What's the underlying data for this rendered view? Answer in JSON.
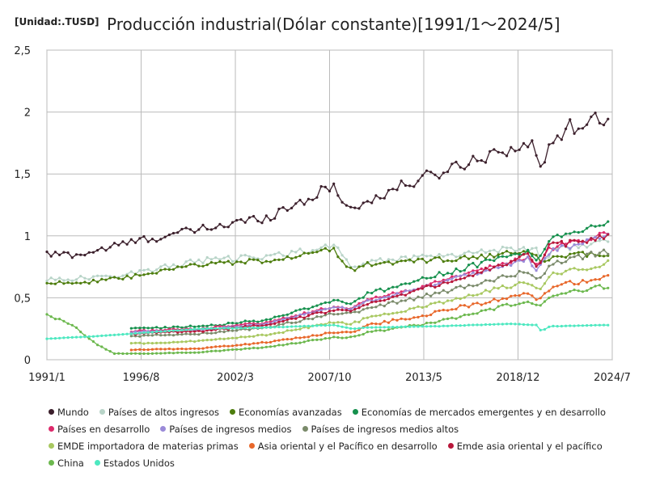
{
  "header": {
    "unit": "[Unidad:.TUSD]",
    "title": "Producción industrial(Dólar constante)[1991/1～2024/5]"
  },
  "chart_data": {
    "type": "line",
    "title": "Producción industrial(Dólar constante)[1991/1～2024/5]",
    "unit": "[Unidad:.TUSD]",
    "xlabel": "",
    "ylabel": "",
    "x_range": [
      1991.0,
      2024.5
    ],
    "ylim": [
      0,
      2.5
    ],
    "grid": true,
    "legend_position": "bottom",
    "x_ticks": [
      {
        "label": "1991/1",
        "value": 1991.0
      },
      {
        "label": "1996/8",
        "value": 1996.583
      },
      {
        "label": "2002/3",
        "value": 2002.167
      },
      {
        "label": "2007/10",
        "value": 2007.75
      },
      {
        "label": "2013/5",
        "value": 2013.333
      },
      {
        "label": "2018/12",
        "value": 2018.917
      },
      {
        "label": "2024/7",
        "value": 2024.5
      }
    ],
    "y_ticks": [
      {
        "label": "0",
        "value": 0
      },
      {
        "label": "0,5",
        "value": 0.5
      },
      {
        "label": "1",
        "value": 1
      },
      {
        "label": "1,5",
        "value": 1.5
      },
      {
        "label": "2",
        "value": 2
      },
      {
        "label": "2,5",
        "value": 2.5
      }
    ],
    "series": [
      {
        "name": "Mundo",
        "color": "#3b1f2b",
        "noise": 0.035,
        "points": [
          [
            1991.0,
            0.85
          ],
          [
            1993.0,
            0.85
          ],
          [
            1996.0,
            0.95
          ],
          [
            2000.0,
            1.05
          ],
          [
            2004.0,
            1.15
          ],
          [
            2008.0,
            1.4
          ],
          [
            2009.1,
            1.2
          ],
          [
            2010.0,
            1.28
          ],
          [
            2012.0,
            1.4
          ],
          [
            2015.0,
            1.55
          ],
          [
            2018.0,
            1.7
          ],
          [
            2019.9,
            1.72
          ],
          [
            2020.3,
            1.5
          ],
          [
            2020.8,
            1.78
          ],
          [
            2022.0,
            1.88
          ],
          [
            2024.0,
            1.95
          ],
          [
            2024.4,
            2.05
          ]
        ]
      },
      {
        "name": "Países de altos ingresos",
        "color": "#b8d4c8",
        "noise": 0.03,
        "points": [
          [
            1991.0,
            0.65
          ],
          [
            1994.0,
            0.66
          ],
          [
            1997.0,
            0.72
          ],
          [
            2000.0,
            0.8
          ],
          [
            2004.0,
            0.83
          ],
          [
            2008.0,
            0.92
          ],
          [
            2009.1,
            0.75
          ],
          [
            2010.0,
            0.79
          ],
          [
            2013.0,
            0.83
          ],
          [
            2016.0,
            0.86
          ],
          [
            2018.5,
            0.9
          ],
          [
            2020.0,
            0.89
          ],
          [
            2020.3,
            0.8
          ],
          [
            2021.0,
            0.88
          ],
          [
            2024.4,
            0.97
          ]
        ]
      },
      {
        "name": "Economías avanzadas",
        "color": "#4d7d0d",
        "noise": 0.025,
        "points": [
          [
            1991.0,
            0.62
          ],
          [
            1994.0,
            0.63
          ],
          [
            1997.0,
            0.69
          ],
          [
            2000.0,
            0.77
          ],
          [
            2004.0,
            0.8
          ],
          [
            2008.0,
            0.89
          ],
          [
            2009.1,
            0.71
          ],
          [
            2010.0,
            0.77
          ],
          [
            2013.0,
            0.8
          ],
          [
            2016.0,
            0.82
          ],
          [
            2018.5,
            0.86
          ],
          [
            2020.0,
            0.85
          ],
          [
            2020.3,
            0.76
          ],
          [
            2021.0,
            0.84
          ],
          [
            2024.4,
            0.86
          ]
        ]
      },
      {
        "name": "Economías de mercados emergentes y en desarrollo",
        "color": "#16904d",
        "noise": 0.03,
        "points": [
          [
            1996.0,
            0.25
          ],
          [
            2000.0,
            0.27
          ],
          [
            2004.0,
            0.32
          ],
          [
            2008.0,
            0.48
          ],
          [
            2009.1,
            0.46
          ],
          [
            2010.0,
            0.53
          ],
          [
            2013.0,
            0.64
          ],
          [
            2016.0,
            0.75
          ],
          [
            2019.5,
            0.88
          ],
          [
            2020.1,
            0.78
          ],
          [
            2020.8,
            0.96
          ],
          [
            2024.4,
            1.12
          ]
        ]
      },
      {
        "name": "Países en desarrollo",
        "color": "#dd2a6b",
        "noise": 0.025,
        "points": [
          [
            1996.0,
            0.23
          ],
          [
            2000.0,
            0.25
          ],
          [
            2004.0,
            0.3
          ],
          [
            2008.0,
            0.43
          ],
          [
            2009.1,
            0.42
          ],
          [
            2010.0,
            0.48
          ],
          [
            2013.0,
            0.58
          ],
          [
            2016.0,
            0.7
          ],
          [
            2019.5,
            0.83
          ],
          [
            2020.1,
            0.74
          ],
          [
            2020.8,
            0.9
          ],
          [
            2024.4,
            1.02
          ]
        ]
      },
      {
        "name": "Países de ingresos medios",
        "color": "#9a8ad8",
        "noise": 0.025,
        "points": [
          [
            1996.0,
            0.22
          ],
          [
            2000.0,
            0.24
          ],
          [
            2004.0,
            0.29
          ],
          [
            2008.0,
            0.42
          ],
          [
            2009.1,
            0.41
          ],
          [
            2010.0,
            0.47
          ],
          [
            2013.0,
            0.57
          ],
          [
            2016.0,
            0.69
          ],
          [
            2019.5,
            0.81
          ],
          [
            2020.1,
            0.72
          ],
          [
            2020.8,
            0.88
          ],
          [
            2024.4,
            1.0
          ]
        ]
      },
      {
        "name": "Países de ingresos medios altos",
        "color": "#7a8a6a",
        "noise": 0.03,
        "points": [
          [
            1996.0,
            0.19
          ],
          [
            2000.0,
            0.21
          ],
          [
            2004.0,
            0.26
          ],
          [
            2008.0,
            0.37
          ],
          [
            2009.1,
            0.37
          ],
          [
            2010.0,
            0.42
          ],
          [
            2013.0,
            0.5
          ],
          [
            2016.0,
            0.6
          ],
          [
            2019.5,
            0.72
          ],
          [
            2020.1,
            0.63
          ],
          [
            2020.8,
            0.78
          ],
          [
            2024.4,
            0.88
          ]
        ]
      },
      {
        "name": "EMDE importadora de materias primas",
        "color": "#a8c860",
        "noise": 0.03,
        "points": [
          [
            1996.0,
            0.13
          ],
          [
            2000.0,
            0.15
          ],
          [
            2004.0,
            0.2
          ],
          [
            2008.0,
            0.3
          ],
          [
            2009.1,
            0.29
          ],
          [
            2010.0,
            0.34
          ],
          [
            2013.0,
            0.42
          ],
          [
            2016.0,
            0.52
          ],
          [
            2019.5,
            0.63
          ],
          [
            2020.1,
            0.55
          ],
          [
            2020.8,
            0.68
          ],
          [
            2024.4,
            0.79
          ]
        ]
      },
      {
        "name": "Asia oriental y el Pacífico en desarrollo",
        "color": "#e8672a",
        "noise": 0.035,
        "points": [
          [
            1996.0,
            0.08
          ],
          [
            2000.0,
            0.09
          ],
          [
            2004.0,
            0.14
          ],
          [
            2008.0,
            0.22
          ],
          [
            2009.1,
            0.22
          ],
          [
            2010.0,
            0.28
          ],
          [
            2013.0,
            0.35
          ],
          [
            2016.0,
            0.44
          ],
          [
            2019.5,
            0.53
          ],
          [
            2020.1,
            0.46
          ],
          [
            2020.8,
            0.58
          ],
          [
            2024.4,
            0.68
          ]
        ]
      },
      {
        "name": "Emde asia oriental y el pacífico",
        "color": "#b8163a",
        "noise": 0.03,
        "points": [
          [
            1996.0,
            0.21
          ],
          [
            2000.0,
            0.23
          ],
          [
            2004.0,
            0.28
          ],
          [
            2008.0,
            0.4
          ],
          [
            2009.1,
            0.39
          ],
          [
            2010.0,
            0.45
          ],
          [
            2013.0,
            0.56
          ],
          [
            2016.0,
            0.68
          ],
          [
            2019.5,
            0.84
          ],
          [
            2020.1,
            0.72
          ],
          [
            2020.8,
            0.92
          ],
          [
            2024.4,
            1.0
          ]
        ]
      },
      {
        "name": "China",
        "color": "#6cb84e",
        "noise": 0.03,
        "points": [
          [
            1991.0,
            0.36
          ],
          [
            1992.5,
            0.28
          ],
          [
            1994.0,
            0.12
          ],
          [
            1995.0,
            0.05
          ],
          [
            1997.0,
            0.05
          ],
          [
            2000.0,
            0.06
          ],
          [
            2004.0,
            0.1
          ],
          [
            2008.0,
            0.18
          ],
          [
            2009.1,
            0.18
          ],
          [
            2010.0,
            0.22
          ],
          [
            2013.0,
            0.28
          ],
          [
            2016.0,
            0.36
          ],
          [
            2019.5,
            0.48
          ],
          [
            2020.1,
            0.42
          ],
          [
            2020.8,
            0.52
          ],
          [
            2024.4,
            0.6
          ]
        ]
      },
      {
        "name": "Estados Unidos",
        "color": "#4de8c0",
        "noise": 0.005,
        "points": [
          [
            1991.0,
            0.17
          ],
          [
            1994.0,
            0.19
          ],
          [
            1997.0,
            0.22
          ],
          [
            2000.0,
            0.25
          ],
          [
            2004.0,
            0.26
          ],
          [
            2008.0,
            0.28
          ],
          [
            2009.1,
            0.25
          ],
          [
            2010.0,
            0.26
          ],
          [
            2014.0,
            0.27
          ],
          [
            2018.5,
            0.29
          ],
          [
            2020.0,
            0.28
          ],
          [
            2020.3,
            0.23
          ],
          [
            2020.8,
            0.27
          ],
          [
            2024.4,
            0.28
          ]
        ]
      }
    ]
  }
}
